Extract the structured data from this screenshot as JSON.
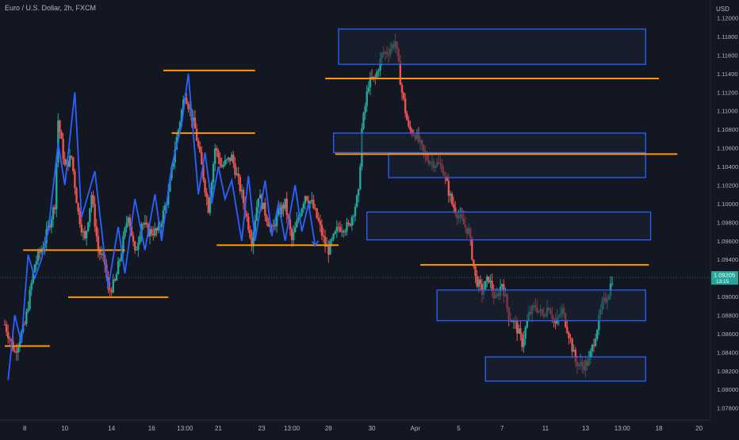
{
  "header": {
    "title": "Euro / U.S. Dollar, 2h, FXCM"
  },
  "colors": {
    "background": "#131722",
    "up": "#26a69a",
    "down": "#ef5350",
    "zigzag": "#2962ff",
    "level": "#ff9800",
    "zone_border": "#2962ff",
    "zone_fill": "#1e2233",
    "axis_text": "#b2b5be",
    "price_tag": "#26a69a"
  },
  "chart_data": {
    "type": "candlestick",
    "title": "Euro / U.S. Dollar, 2h, FXCM",
    "currency": "USD",
    "ylim": [
      1.077,
      1.123
    ],
    "y_ticks": [
      "1.12000",
      "1.11800",
      "1.11600",
      "1.11400",
      "1.11200",
      "1.11000",
      "1.10800",
      "1.10600",
      "1.10400",
      "1.10200",
      "1.10000",
      "1.09800",
      "1.09600",
      "1.09400",
      "1.09200",
      "1.09000",
      "1.08800",
      "1.08600",
      "1.08400",
      "1.08200",
      "1.08000",
      "1.07800"
    ],
    "x_ticks": [
      {
        "label": "8",
        "bar": 6
      },
      {
        "label": "10",
        "bar": 18
      },
      {
        "label": "14",
        "bar": 32
      },
      {
        "label": "16",
        "bar": 44
      },
      {
        "label": "13:00",
        "bar": 54
      },
      {
        "label": "21",
        "bar": 64
      },
      {
        "label": "23",
        "bar": 77
      },
      {
        "label": "13:00",
        "bar": 86
      },
      {
        "label": "28",
        "bar": 97
      },
      {
        "label": "30",
        "bar": 110
      },
      {
        "label": "Apr",
        "bar": 123
      },
      {
        "label": "5",
        "bar": 136
      },
      {
        "label": "7",
        "bar": 149
      },
      {
        "label": "11",
        "bar": 162
      },
      {
        "label": "13",
        "bar": 174
      },
      {
        "label": "13:00",
        "bar": 185
      },
      {
        "label": "18",
        "bar": 196
      },
      {
        "label": "20",
        "bar": 208
      }
    ],
    "x_bar_range": [
      0,
      210
    ],
    "last_price": "1.09205",
    "countdown": "13:15",
    "price_path": [
      [
        0,
        1.087
      ],
      [
        3,
        1.084
      ],
      [
        6,
        1.087
      ],
      [
        9,
        1.0935
      ],
      [
        12,
        1.096
      ],
      [
        15,
        1.1
      ],
      [
        16,
        1.109
      ],
      [
        18,
        1.104
      ],
      [
        20,
        1.105
      ],
      [
        22,
        1.099
      ],
      [
        24,
        1.096
      ],
      [
        26,
        1.101
      ],
      [
        28,
        1.095
      ],
      [
        30,
        1.0935
      ],
      [
        31,
        1.0905
      ],
      [
        33,
        1.0915
      ],
      [
        35,
        1.095
      ],
      [
        37,
        1.099
      ],
      [
        39,
        1.0945
      ],
      [
        41,
        1.098
      ],
      [
        43,
        1.097
      ],
      [
        46,
        1.097
      ],
      [
        49,
        1.101
      ],
      [
        51,
        1.106
      ],
      [
        54,
        1.112
      ],
      [
        57,
        1.108
      ],
      [
        59,
        1.104
      ],
      [
        61,
        1.0995
      ],
      [
        63,
        1.106
      ],
      [
        65,
        1.104
      ],
      [
        68,
        1.105
      ],
      [
        71,
        1.101
      ],
      [
        74,
        1.096
      ],
      [
        76,
        1.101
      ],
      [
        78,
        1.099
      ],
      [
        80,
        1.097
      ],
      [
        82,
        1.099
      ],
      [
        84,
        1.1
      ],
      [
        86,
        1.096
      ],
      [
        88,
        1.0985
      ],
      [
        90,
        1.101
      ],
      [
        92,
        1.1
      ],
      [
        94,
        1.098
      ],
      [
        96,
        1.0955
      ],
      [
        97,
        1.095
      ],
      [
        100,
        1.0975
      ],
      [
        103,
        1.0975
      ],
      [
        106,
        1.101
      ],
      [
        107,
        1.108
      ],
      [
        109,
        1.113
      ],
      [
        111,
        1.1135
      ],
      [
        113,
        1.116
      ],
      [
        115,
        1.1165
      ],
      [
        117,
        1.1175
      ],
      [
        119,
        1.112
      ],
      [
        121,
        1.108
      ],
      [
        123,
        1.1075
      ],
      [
        126,
        1.105
      ],
      [
        128,
        1.1045
      ],
      [
        131,
        1.104
      ],
      [
        134,
        1.1
      ],
      [
        137,
        1.098
      ],
      [
        139,
        1.097
      ],
      [
        141,
        1.092
      ],
      [
        143,
        1.0905
      ],
      [
        145,
        1.092
      ],
      [
        147,
        1.0895
      ],
      [
        149,
        1.0915
      ],
      [
        151,
        1.088
      ],
      [
        153,
        1.087
      ],
      [
        155,
        1.085
      ],
      [
        157,
        1.088
      ],
      [
        159,
        1.089
      ],
      [
        161,
        1.088
      ],
      [
        163,
        1.089
      ],
      [
        165,
        1.087
      ],
      [
        167,
        1.0885
      ],
      [
        169,
        1.086
      ],
      [
        171,
        1.083
      ],
      [
        173,
        1.0825
      ],
      [
        175,
        1.083
      ],
      [
        177,
        1.086
      ],
      [
        179,
        1.089
      ],
      [
        181,
        1.0905
      ],
      [
        182,
        1.092
      ]
    ],
    "zigzag": [
      [
        1,
        1.081
      ],
      [
        3,
        1.088
      ],
      [
        5,
        1.085
      ],
      [
        7,
        1.0945
      ],
      [
        9,
        1.092
      ],
      [
        11,
        1.094
      ],
      [
        13,
        1.097
      ],
      [
        16,
        1.1065
      ],
      [
        18,
        1.102
      ],
      [
        21,
        1.112
      ],
      [
        23,
        1.0985
      ],
      [
        27,
        1.1035
      ],
      [
        31,
        1.091
      ],
      [
        34,
        1.0975
      ],
      [
        36,
        1.0925
      ],
      [
        39,
        1.1005
      ],
      [
        42,
        1.095
      ],
      [
        45,
        1.101
      ],
      [
        47,
        1.096
      ],
      [
        50,
        1.104
      ],
      [
        53,
        1.1085
      ],
      [
        55,
        1.114
      ],
      [
        58,
        1.101
      ],
      [
        60,
        1.1055
      ],
      [
        62,
        1.1
      ],
      [
        64,
        1.104
      ],
      [
        66,
        1.1005
      ],
      [
        68,
        1.1025
      ],
      [
        71,
        1.096
      ],
      [
        73,
        1.103
      ],
      [
        75,
        1.096
      ],
      [
        78,
        1.1025
      ],
      [
        80,
        1.0965
      ],
      [
        82,
        1.1
      ],
      [
        84,
        1.096
      ],
      [
        87,
        1.102
      ],
      [
        89,
        1.097
      ],
      [
        91,
        1.1
      ],
      [
        93,
        1.0955
      ]
    ],
    "levels": [
      {
        "y": 1.08467,
        "x0": 0,
        "x1": 27
      },
      {
        "y": 1.08993,
        "x0": 38,
        "x1": 98
      },
      {
        "y": 1.095,
        "x0": 11,
        "x1": 72
      },
      {
        "y": 1.09553,
        "x0": 127,
        "x1": 200
      },
      {
        "y": 1.1076,
        "x0": 100,
        "x1": 150
      },
      {
        "y": 1.11434,
        "x0": 95,
        "x1": 150
      },
      {
        "y": 1.11347,
        "x0": 192,
        "x1": 392
      },
      {
        "y": 1.10534,
        "x0": 198,
        "x1": 403
      },
      {
        "y": 1.09341,
        "x0": 249,
        "x1": 386
      }
    ],
    "zones": [
      {
        "y_top": 1.1188,
        "y_bottom": 1.115,
        "x0": 200,
        "x1": 384
      },
      {
        "y_top": 1.1076,
        "y_bottom": 1.1055,
        "x0": 197,
        "x1": 384
      },
      {
        "y_top": 1.1054,
        "y_bottom": 1.1028,
        "x0": 230,
        "x1": 384
      },
      {
        "y_top": 1.0991,
        "y_bottom": 1.0961,
        "x0": 217,
        "x1": 387
      },
      {
        "y_top": 1.0907,
        "y_bottom": 1.0874,
        "x0": 259,
        "x1": 384
      },
      {
        "y_top": 1.0835,
        "y_bottom": 1.0809,
        "x0": 288,
        "x1": 384
      }
    ]
  }
}
